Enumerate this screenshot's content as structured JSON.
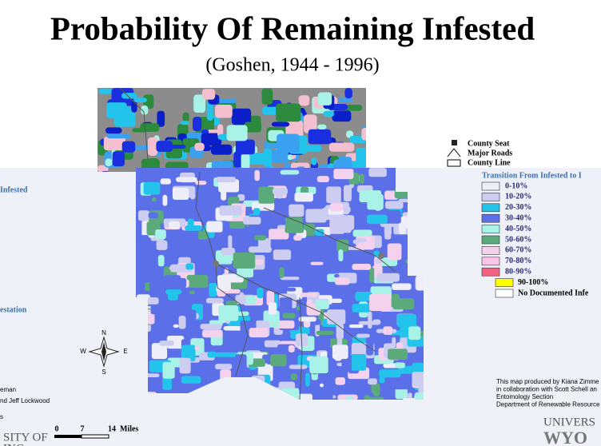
{
  "title": "Probability Of Remaining Infested",
  "subtitle": "(Goshen, 1944 - 1996)",
  "reference_legend": [
    "County Seat",
    "Major Roads",
    "County Line"
  ],
  "legend": {
    "title": "Transition From Infested to I",
    "items": [
      {
        "label": "0-10%",
        "color": "#eeeef8"
      },
      {
        "label": "10-20%",
        "color": "#cdcdf2"
      },
      {
        "label": "20-30%",
        "color": "#22c4ec"
      },
      {
        "label": "30-40%",
        "color": "#5a6fe8"
      },
      {
        "label": "40-50%",
        "color": "#a8f2e8"
      },
      {
        "label": "50-60%",
        "color": "#5aaa7c"
      },
      {
        "label": "60-70%",
        "color": "#f4d2ee"
      },
      {
        "label": "70-80%",
        "color": "#ffc4ea"
      },
      {
        "label": "80-90%",
        "color": "#f06482"
      },
      {
        "label": "90-100%",
        "color": "#ffff00"
      },
      {
        "label": "No Documented Infe",
        "color": "#ffffff"
      }
    ]
  },
  "left_labels": [
    "Infested",
    "estation"
  ],
  "compass": [
    "N",
    "W",
    "E",
    "S"
  ],
  "credits_left": [
    "eman",
    "nd Jeff Lockwood",
    "s"
  ],
  "scale": {
    "ticks": [
      0,
      7,
      14
    ],
    "unit": "Miles"
  },
  "credits_right": [
    "This map produced by Kiana Zimme",
    "in collaboration with Scott Schell an",
    "Entomology Section",
    "Department of Renewable Resource"
  ],
  "university_left": [
    "SITY OF",
    "ING"
  ],
  "university_right": [
    "UNIVERS",
    "WYO"
  ]
}
